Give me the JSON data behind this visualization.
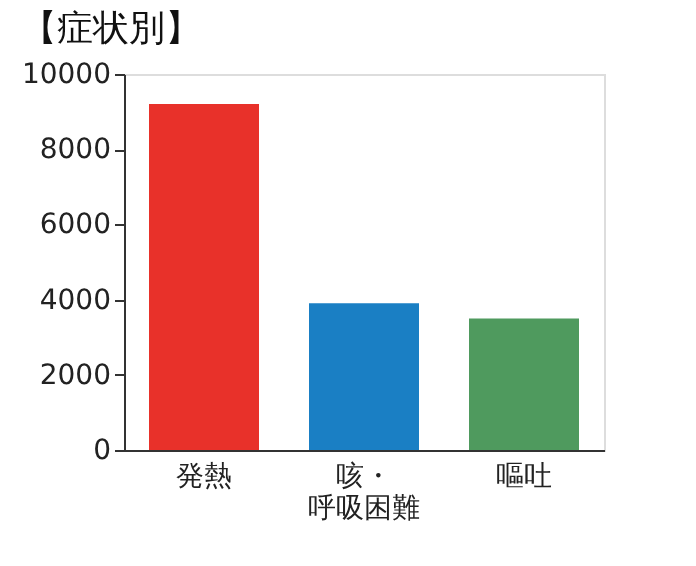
{
  "chart_data": {
    "type": "bar",
    "title": "【症状別】",
    "categories": [
      "発熱",
      "咳・呼吸困難",
      "嘔吐"
    ],
    "values": [
      9200,
      3900,
      3500
    ],
    "colors": [
      "#e8312a",
      "#1a7fc4",
      "#4f9a5e"
    ],
    "ylim": [
      0,
      10000
    ],
    "yticks": [
      0,
      2000,
      4000,
      6000,
      8000,
      10000
    ],
    "grid": false
  }
}
